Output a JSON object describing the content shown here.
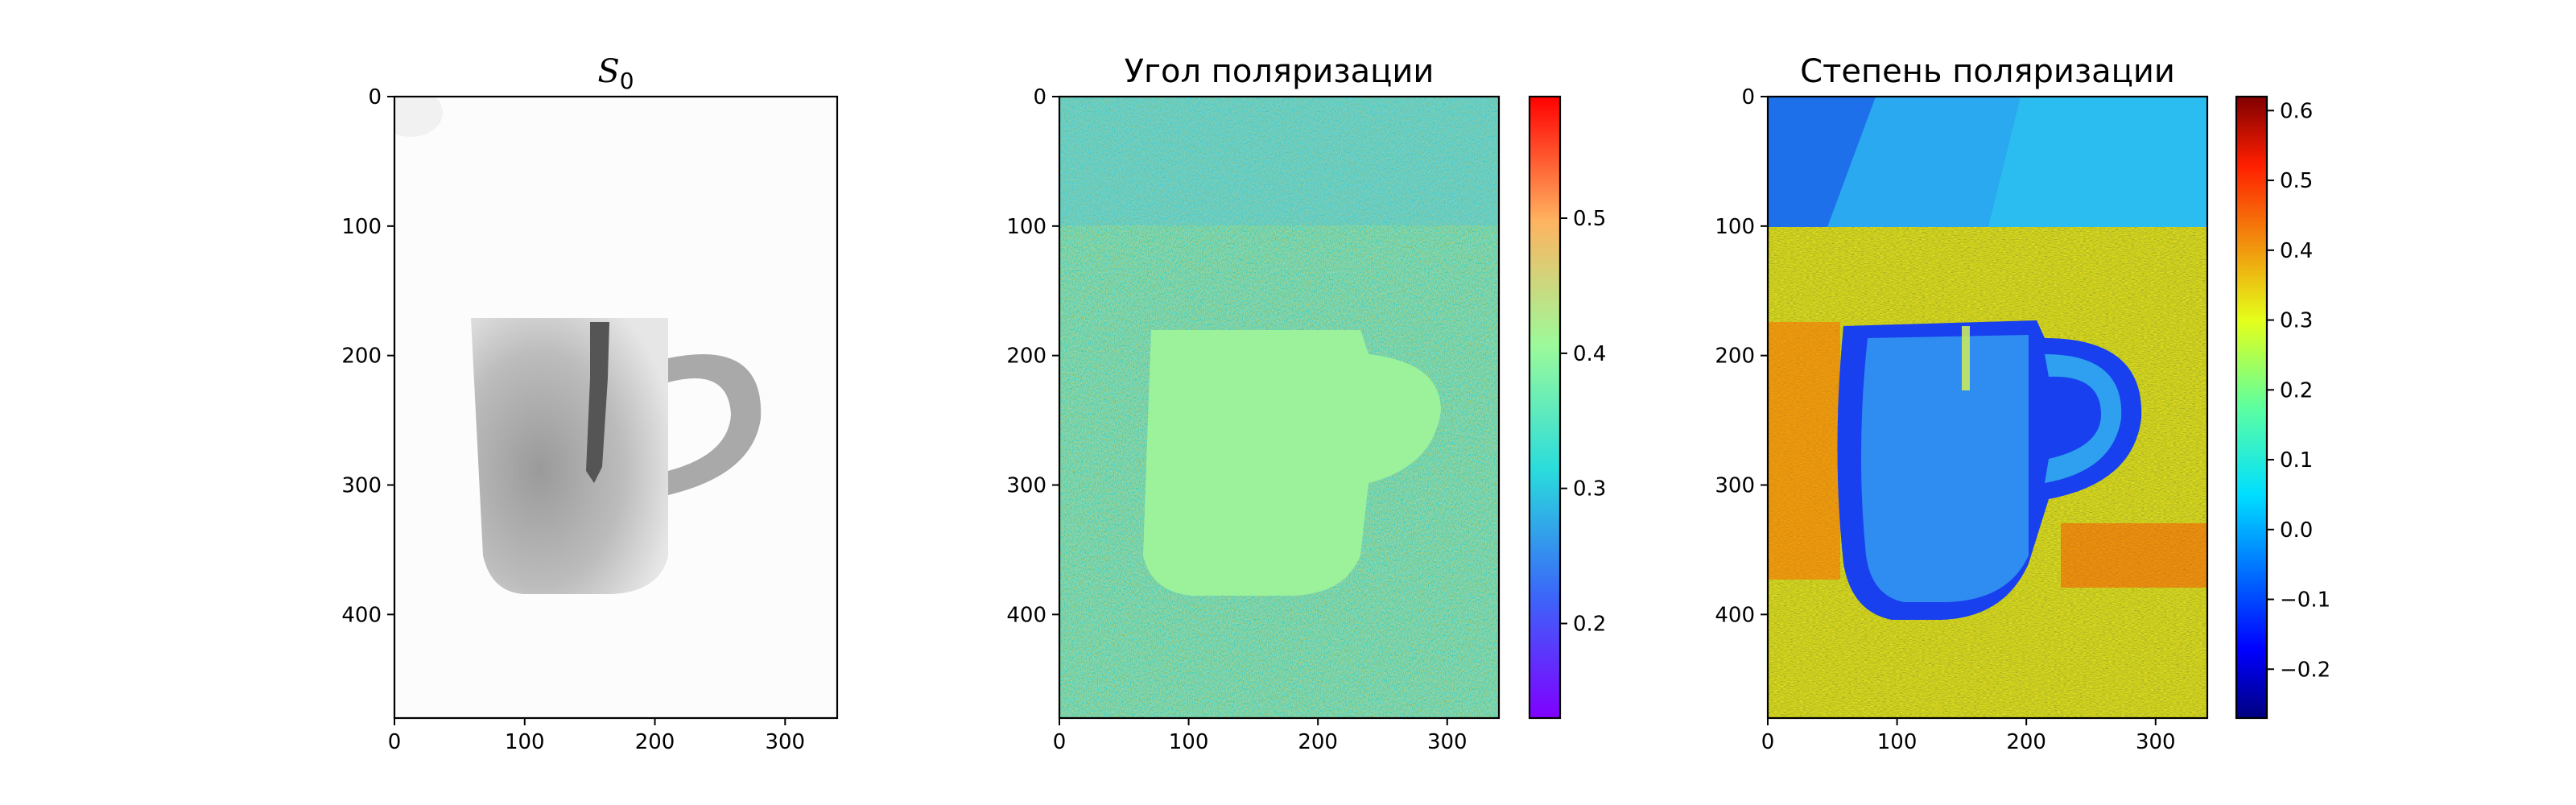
{
  "chart_data": [
    {
      "type": "heatmap",
      "title": "S₀",
      "title_base": "S",
      "title_sub": "0",
      "colormap": "gray",
      "image_shape": [
        480,
        340
      ],
      "xlim": [
        0,
        340
      ],
      "ylim": [
        480,
        0
      ],
      "x_ticks": [
        0,
        100,
        200,
        300
      ],
      "y_ticks": [
        0,
        100,
        200,
        300,
        400
      ],
      "x_tick_labels": [
        "0",
        "100",
        "200",
        "300"
      ],
      "y_tick_labels": [
        "0",
        "100",
        "200",
        "300",
        "400"
      ],
      "content": "grayscale intensity image of a mug on a near-white background"
    },
    {
      "type": "heatmap",
      "title": "Угол поляризации",
      "colormap": "rainbow",
      "image_shape": [
        480,
        340
      ],
      "xlim": [
        0,
        340
      ],
      "ylim": [
        480,
        0
      ],
      "x_ticks": [
        0,
        100,
        200,
        300
      ],
      "y_ticks": [
        0,
        100,
        200,
        300,
        400
      ],
      "x_tick_labels": [
        "0",
        "100",
        "200",
        "300"
      ],
      "y_tick_labels": [
        "0",
        "100",
        "200",
        "300",
        "400"
      ],
      "colorbar": {
        "range": [
          0.13,
          0.59
        ],
        "ticks": [
          0.2,
          0.3,
          0.4,
          0.5
        ],
        "tick_labels": [
          "0.2",
          "0.3",
          "0.4",
          "0.5"
        ]
      },
      "content": "noisy polarization angle map; mug region uniform ~0.4"
    },
    {
      "type": "heatmap",
      "title": "Степень поляризации",
      "colormap": "jet",
      "image_shape": [
        480,
        340
      ],
      "xlim": [
        0,
        340
      ],
      "ylim": [
        480,
        0
      ],
      "x_ticks": [
        0,
        100,
        200,
        300
      ],
      "y_ticks": [
        0,
        100,
        200,
        300,
        400
      ],
      "x_tick_labels": [
        "0",
        "100",
        "200",
        "300"
      ],
      "y_tick_labels": [
        "0",
        "100",
        "200",
        "300",
        "400"
      ],
      "colorbar": {
        "range": [
          -0.27,
          0.62
        ],
        "ticks": [
          -0.2,
          -0.1,
          0.0,
          0.1,
          0.2,
          0.3,
          0.4,
          0.5,
          0.6
        ],
        "tick_labels": [
          "−0.2",
          "−0.1",
          "0.0",
          "0.1",
          "0.2",
          "0.3",
          "0.4",
          "0.5",
          "0.6"
        ]
      },
      "content": "degree of polarization map; mug low (~-0.15), background high (~0.35)"
    }
  ]
}
